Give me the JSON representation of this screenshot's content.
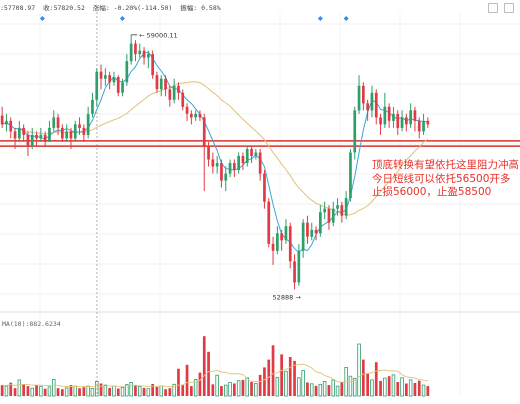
{
  "info_bar": {
    "open_label": ":57708.97",
    "close_label": "收:57820.52",
    "change_label": "涨幅: -0.20%(-114.50)",
    "amplitude_label": "振幅: 0.58%"
  },
  "volume_label": "MA(10):882.6234",
  "annotation": {
    "line1": "顶底转换有望依托这里阻力冲高",
    "line2": "今日短线可以依托56500开多",
    "line3": "止损56000，止盈58500"
  },
  "colors": {
    "up": "#2e9e6b",
    "down": "#e03a45",
    "resistance": "#d9302a",
    "ma_fast": "#3aa7d6",
    "ma_slow": "#e0c27a",
    "marker": "#3b8be0"
  },
  "chart_data": {
    "type": "candlestick",
    "price_range": [
      52400,
      60600
    ],
    "high_label": "59000.11",
    "low_label": "52888",
    "resistance_levels": [
      56930,
      56780
    ],
    "candles": [
      [
        57650,
        57400,
        57900,
        57300
      ],
      [
        57400,
        57500,
        57700,
        57200
      ],
      [
        57500,
        57200,
        57600,
        57000
      ],
      [
        57200,
        57000,
        57300,
        56700
      ],
      [
        57000,
        57300,
        57500,
        56900
      ],
      [
        57300,
        57100,
        57400,
        56900
      ],
      [
        57100,
        56800,
        57200,
        56500
      ],
      [
        56800,
        57100,
        57300,
        56700
      ],
      [
        57100,
        57000,
        57200,
        56800
      ],
      [
        57000,
        57100,
        57300,
        56900
      ],
      [
        57100,
        56900,
        57200,
        56800
      ],
      [
        56900,
        57300,
        57500,
        56900
      ],
      [
        57300,
        57600,
        57800,
        57200
      ],
      [
        57600,
        57300,
        57700,
        57100
      ],
      [
        57300,
        57000,
        57400,
        56900
      ],
      [
        57000,
        57200,
        57400,
        56900
      ],
      [
        57200,
        57000,
        57300,
        56700
      ],
      [
        57000,
        57400,
        57500,
        56900
      ],
      [
        57400,
        57300,
        57600,
        57100
      ],
      [
        57300,
        57100,
        57400,
        56900
      ],
      [
        57100,
        57700,
        57900,
        57000
      ],
      [
        57700,
        58100,
        58300,
        57600
      ],
      [
        58100,
        58900,
        59000,
        57900
      ],
      [
        58900,
        58700,
        59100,
        58400
      ],
      [
        58700,
        58800,
        59000,
        58500
      ],
      [
        58800,
        58600,
        58900,
        58400
      ],
      [
        58600,
        58750,
        58900,
        58500
      ],
      [
        58750,
        58300,
        58800,
        58200
      ],
      [
        58300,
        58600,
        58700,
        58200
      ],
      [
        58600,
        59200,
        59400,
        58500
      ],
      [
        59200,
        59700,
        59950,
        59100
      ],
      [
        59700,
        59400,
        59800,
        59200
      ],
      [
        59400,
        59500,
        59700,
        59300
      ],
      [
        59500,
        59300,
        59600,
        59100
      ],
      [
        59300,
        59400,
        59500,
        59000
      ],
      [
        59400,
        58800,
        59500,
        58700
      ],
      [
        58800,
        58400,
        58900,
        58300
      ],
      [
        58400,
        58700,
        58800,
        58200
      ],
      [
        58700,
        58400,
        58800,
        58200
      ],
      [
        58400,
        58100,
        58500,
        57900
      ],
      [
        58100,
        58500,
        58700,
        58000
      ],
      [
        58500,
        58300,
        58600,
        58100
      ],
      [
        58300,
        57900,
        58400,
        57800
      ],
      [
        57900,
        57700,
        58000,
        57500
      ],
      [
        57700,
        57600,
        57800,
        57400
      ],
      [
        57600,
        57700,
        57800,
        57500
      ],
      [
        57700,
        57600,
        57800,
        57500
      ],
      [
        57600,
        56800,
        57700,
        55500
      ],
      [
        56800,
        56400,
        56900,
        56200
      ],
      [
        56400,
        56200,
        56600,
        56000
      ],
      [
        56200,
        56300,
        56500,
        56000
      ],
      [
        56300,
        55800,
        56400,
        55600
      ],
      [
        55800,
        56000,
        56200,
        55500
      ],
      [
        56000,
        56300,
        56400,
        55900
      ],
      [
        56300,
        56100,
        56400,
        55900
      ],
      [
        56100,
        56500,
        56600,
        56000
      ],
      [
        56500,
        56300,
        56600,
        56100
      ],
      [
        56300,
        56700,
        56800,
        56200
      ],
      [
        56700,
        56500,
        56800,
        56300
      ],
      [
        56500,
        56600,
        56700,
        56400
      ],
      [
        56600,
        56000,
        56700,
        55800
      ],
      [
        56000,
        55200,
        56100,
        55000
      ],
      [
        55200,
        54000,
        55300,
        53900
      ],
      [
        54000,
        53800,
        54200,
        53400
      ],
      [
        53800,
        54300,
        54500,
        53700
      ],
      [
        54300,
        54100,
        54400,
        53800
      ],
      [
        54100,
        54500,
        54700,
        54000
      ],
      [
        54500,
        53500,
        54600,
        53300
      ],
      [
        53500,
        52900,
        53700,
        52700
      ],
      [
        52900,
        53800,
        54000,
        52800
      ],
      [
        53800,
        54600,
        54700,
        53600
      ],
      [
        54600,
        54200,
        54800,
        54000
      ],
      [
        54200,
        54400,
        54600,
        54100
      ],
      [
        54400,
        54300,
        54500,
        54100
      ],
      [
        54300,
        54900,
        55100,
        54200
      ],
      [
        54900,
        55000,
        55200,
        54700
      ],
      [
        55000,
        54600,
        55100,
        54400
      ],
      [
        54600,
        55000,
        55200,
        54500
      ],
      [
        55000,
        55100,
        55300,
        54800
      ],
      [
        55100,
        54800,
        55200,
        54600
      ],
      [
        54800,
        55300,
        55500,
        54700
      ],
      [
        55300,
        56600,
        56700,
        55200
      ],
      [
        56600,
        57800,
        57900,
        56400
      ],
      [
        57800,
        58500,
        58800,
        57700
      ],
      [
        58500,
        58000,
        58600,
        57800
      ],
      [
        58000,
        57800,
        58100,
        57500
      ],
      [
        57800,
        58300,
        58500,
        57600
      ],
      [
        58300,
        57600,
        58400,
        57400
      ],
      [
        57600,
        57400,
        57700,
        57100
      ],
      [
        57400,
        57900,
        58300,
        57300
      ],
      [
        57900,
        57500,
        58000,
        57300
      ],
      [
        57500,
        57700,
        57900,
        57300
      ],
      [
        57700,
        57300,
        57800,
        57100
      ],
      [
        57300,
        57600,
        57800,
        57200
      ],
      [
        57600,
        57400,
        57700,
        57200
      ],
      [
        57400,
        57800,
        58000,
        57300
      ],
      [
        57800,
        57500,
        57900,
        57200
      ],
      [
        57500,
        57200,
        57600,
        57000
      ],
      [
        57200,
        57500,
        57700,
        57100
      ],
      [
        57500,
        57400,
        57600,
        57300
      ]
    ],
    "volume_range": [
      0,
      3000
    ],
    "volumes": [
      420,
      380,
      510,
      300,
      620,
      450,
      380,
      300,
      420,
      360,
      280,
      350,
      640,
      300,
      260,
      310,
      420,
      380,
      300,
      340,
      380,
      290,
      560,
      480,
      420,
      310,
      380,
      290,
      330,
      440,
      520,
      410,
      360,
      310,
      280,
      460,
      350,
      390,
      260,
      300,
      450,
      1050,
      420,
      1200,
      380,
      640,
      900,
      2300,
      1700,
      450,
      800,
      380,
      420,
      520,
      480,
      590,
      620,
      700,
      540,
      480,
      810,
      1100,
      1400,
      1950,
      720,
      1600,
      950,
      1500,
      1350,
      700,
      980,
      520,
      470,
      390,
      450,
      560,
      420,
      610,
      380,
      520,
      1100,
      760,
      680,
      2000,
      1400,
      850,
      620,
      1300,
      580,
      690,
      760,
      810,
      540,
      700,
      480,
      620,
      500,
      590,
      420,
      380
    ],
    "blue_markers_at": [
      21,
      74,
      80
    ]
  }
}
